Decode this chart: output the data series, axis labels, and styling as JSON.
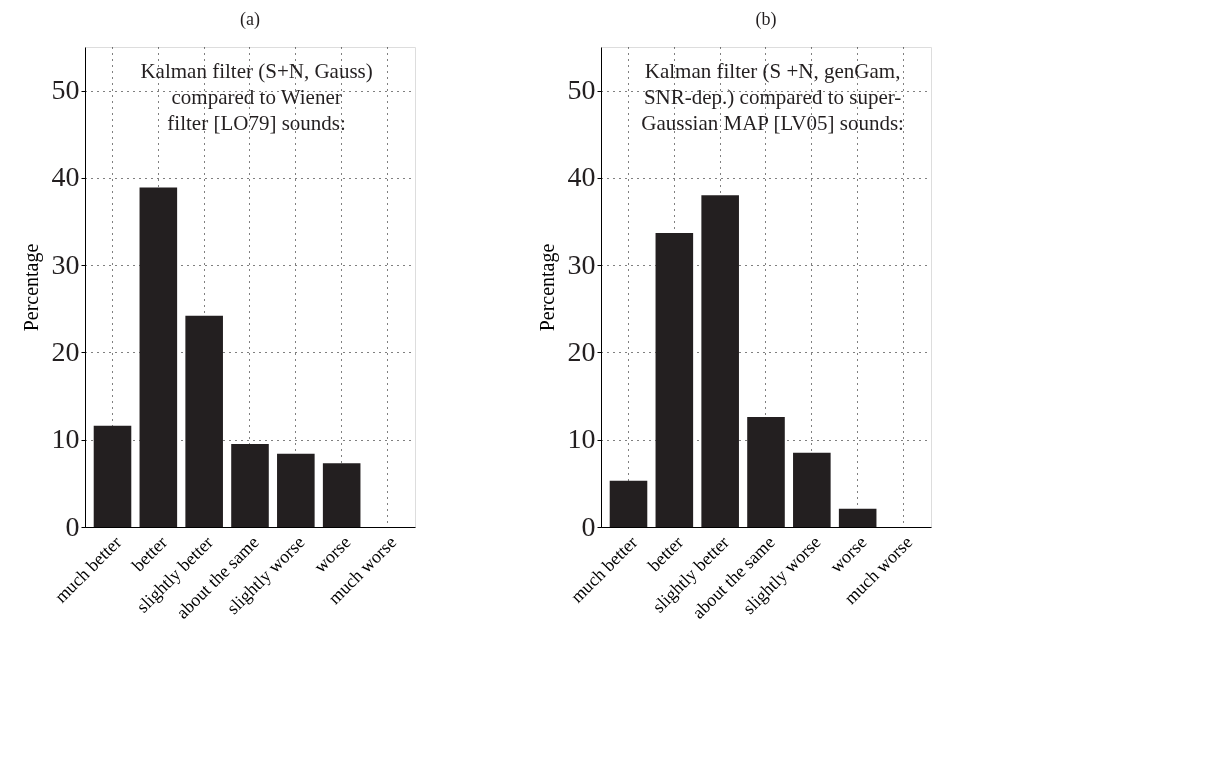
{
  "chart_data": [
    {
      "type": "bar",
      "title": "(a)",
      "ylabel": "Percentage",
      "categories": [
        "much better",
        "better",
        "slightly better",
        "about the same",
        "slightly worse",
        "worse",
        "much worse"
      ],
      "values": [
        11.6,
        38.9,
        24.2,
        9.5,
        8.4,
        7.3,
        0
      ],
      "color": "#231f20",
      "ylim": [
        0,
        55
      ],
      "yticks": [
        0,
        10,
        20,
        30,
        40,
        50
      ],
      "grid": true,
      "annotations": [
        "Kalman filter (S+N, Gauss)\ncompared to Wiener\nfilter [LO79] sounds:"
      ]
    },
    {
      "type": "bar",
      "title": "(b)",
      "ylabel": "Percentage",
      "categories": [
        "much better",
        "better",
        "slightly better",
        "about the same",
        "slightly worse",
        "worse",
        "much worse"
      ],
      "values": [
        5.3,
        33.7,
        38.0,
        12.6,
        8.5,
        2.1,
        0
      ],
      "color": "#231f20",
      "ylim": [
        0,
        55
      ],
      "yticks": [
        0,
        10,
        20,
        30,
        40,
        50
      ],
      "grid": true,
      "annotations": [
        "Kalman filter (S +N, genGam,\nSNR-dep.) compared to super-\nGaussian MAP [LV05] sounds:"
      ]
    }
  ]
}
